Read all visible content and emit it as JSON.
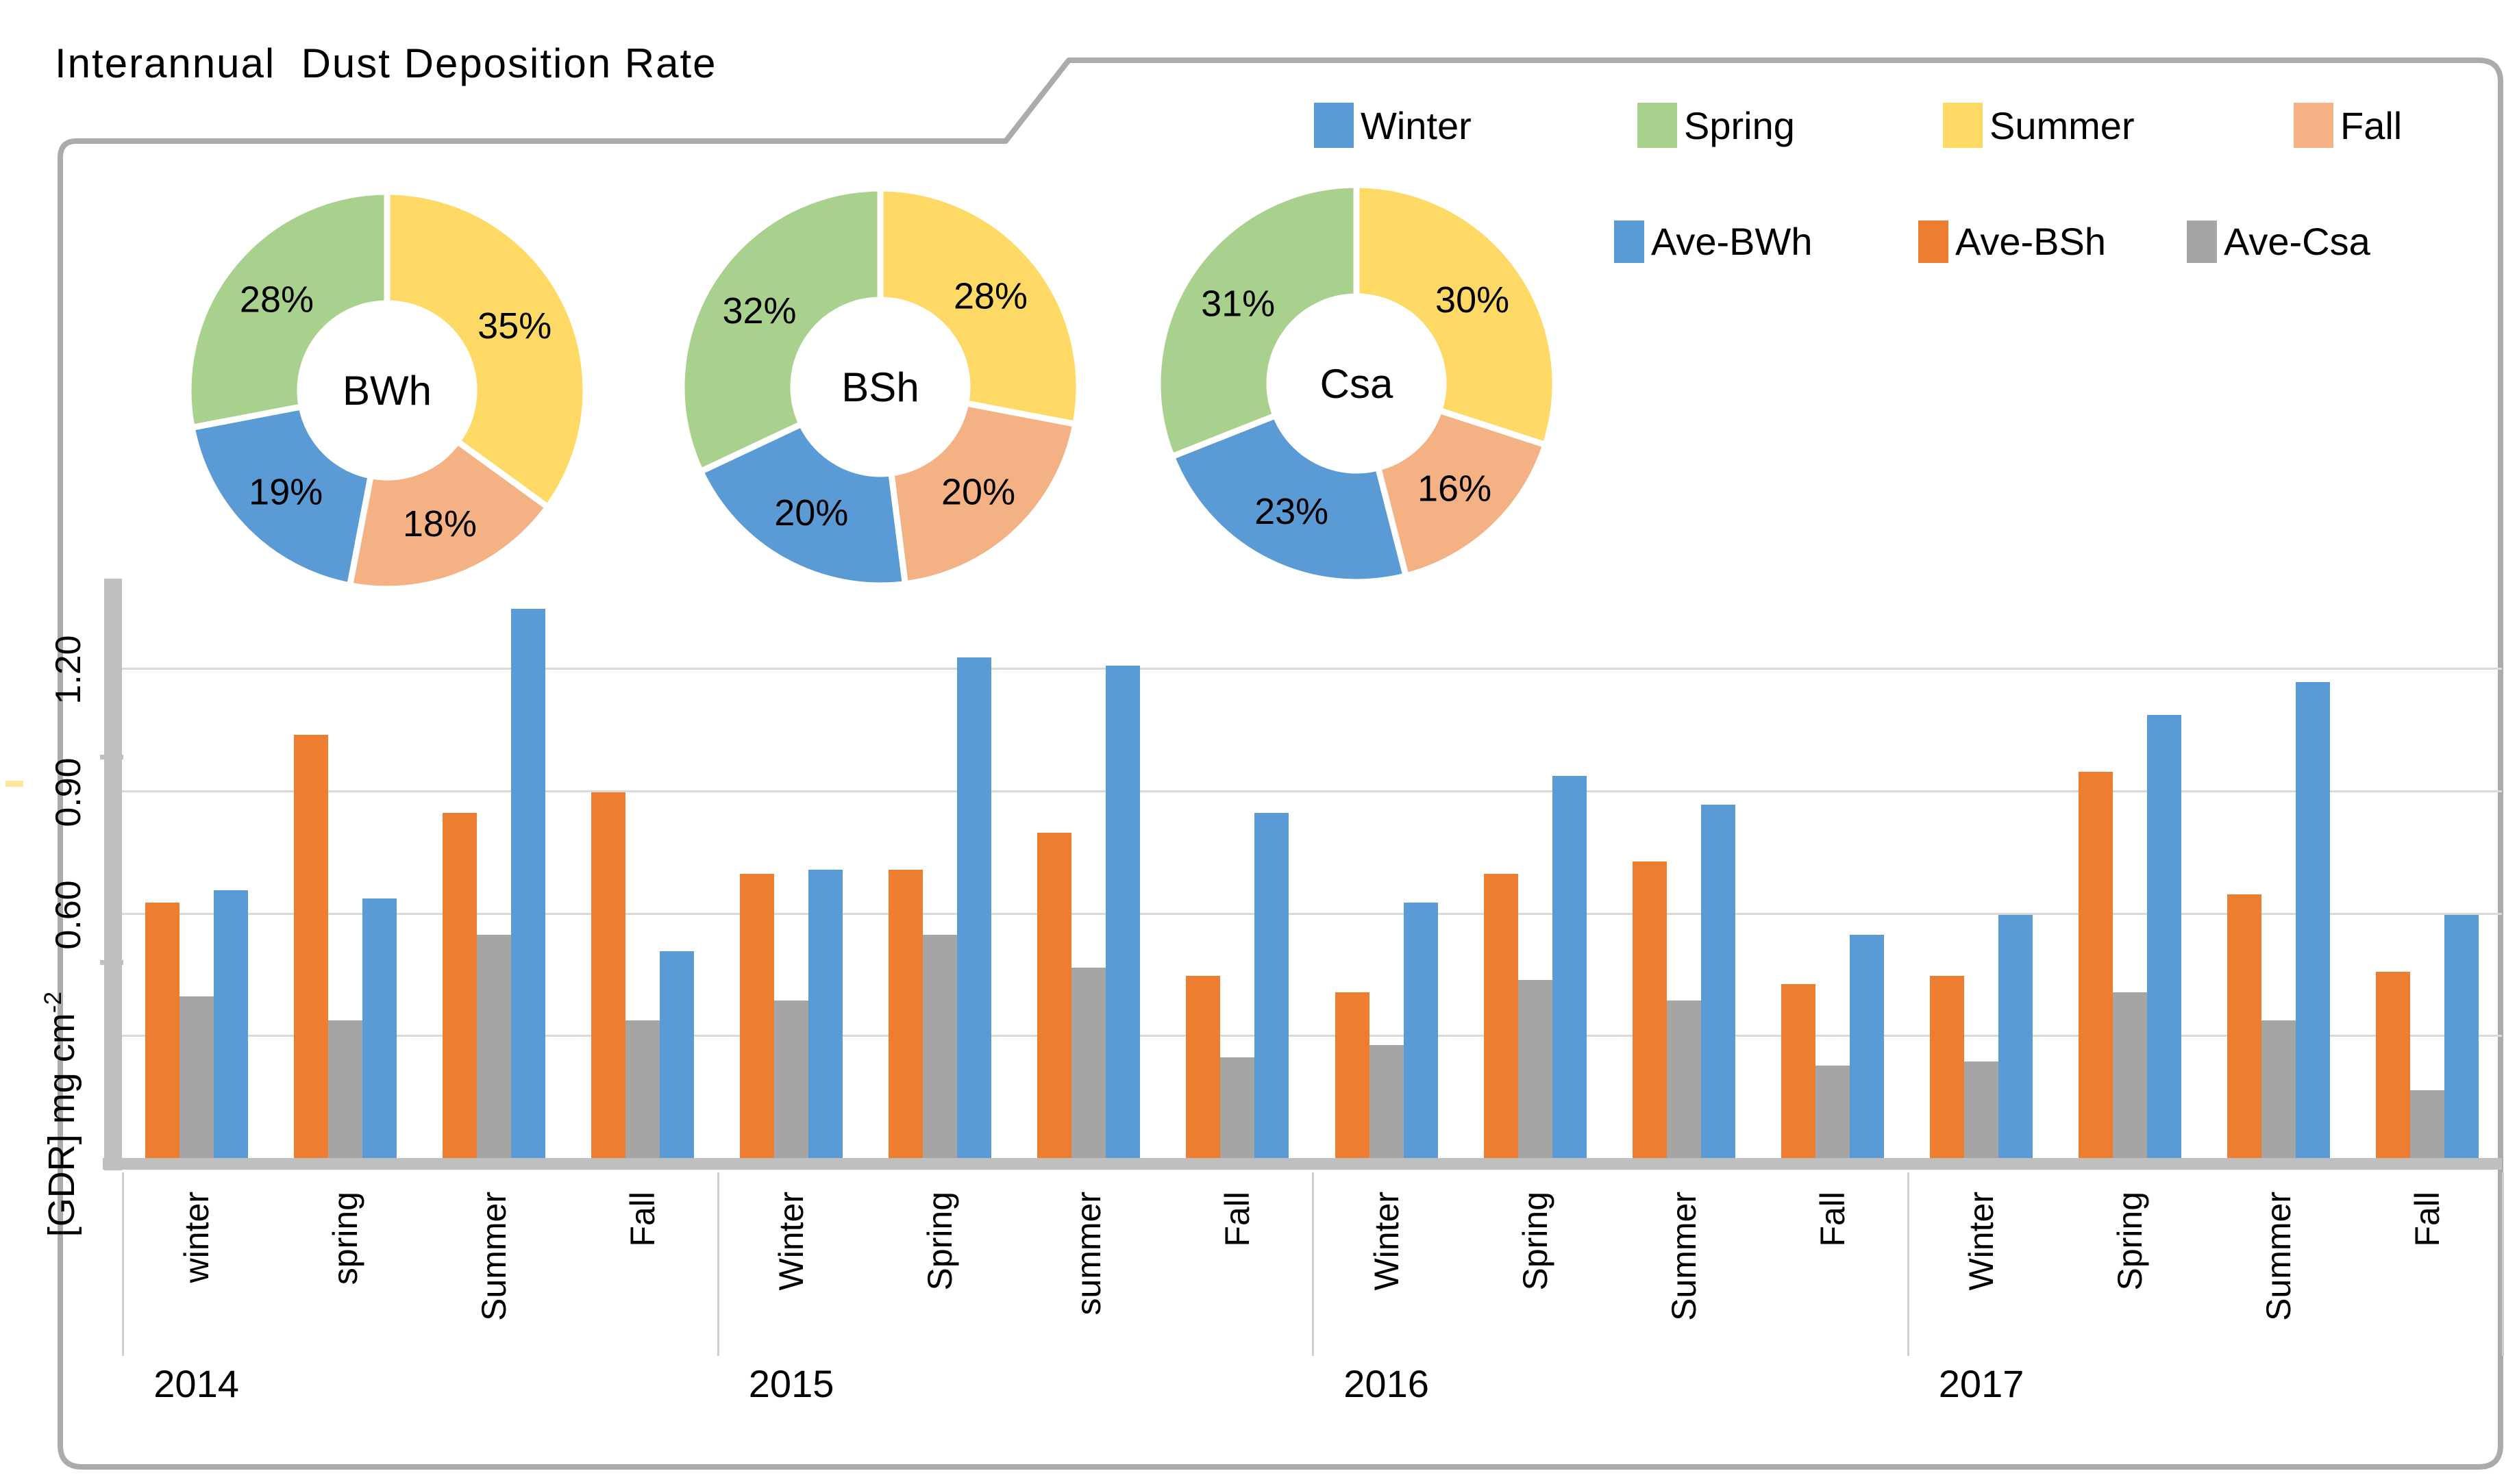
{
  "title": "Interannual  Dust Deposition Rate",
  "colors": {
    "Winter": "#5B9BD5",
    "Spring": "#A9D18E",
    "Summer": "#FFD966",
    "Fall": "#F4B183",
    "Ave-BWh": "#5B9BD5",
    "Ave-BSh": "#ED7D31",
    "Ave-Csa": "#A5A5A5",
    "gridline": "#D9D9D9",
    "axis": "#BFBFBF",
    "frame": "#ABABAB"
  },
  "legend": {
    "seasons": [
      "Winter",
      "Spring",
      "Summer",
      "Fall"
    ],
    "averages": [
      "Ave-BWh",
      "Ave-BSh",
      "Ave-Csa"
    ]
  },
  "chart_data": [
    {
      "type": "pie",
      "subtype": "donut",
      "center_label": "BWh",
      "start": "top",
      "direction": "clockwise",
      "slices": [
        {
          "season": "Summer",
          "value": 35,
          "label": "35%"
        },
        {
          "season": "Fall",
          "value": 18,
          "label": "18%"
        },
        {
          "season": "Winter",
          "value": 19,
          "label": "19%"
        },
        {
          "season": "Spring",
          "value": 28,
          "label": "28%"
        }
      ]
    },
    {
      "type": "pie",
      "subtype": "donut",
      "center_label": "BSh",
      "start": "top",
      "direction": "clockwise",
      "slices": [
        {
          "season": "Summer",
          "value": 28,
          "label": "28%"
        },
        {
          "season": "Fall",
          "value": 20,
          "label": "20%"
        },
        {
          "season": "Winter",
          "value": 20,
          "label": "20%"
        },
        {
          "season": "Spring",
          "value": 32,
          "label": "32%"
        }
      ]
    },
    {
      "type": "pie",
      "subtype": "donut",
      "center_label": "Csa",
      "start": "top",
      "direction": "clockwise",
      "slices": [
        {
          "season": "Summer",
          "value": 30,
          "label": "30%"
        },
        {
          "season": "Fall",
          "value": 16,
          "label": "16%"
        },
        {
          "season": "Winter",
          "value": 23,
          "label": "23%"
        },
        {
          "season": "Spring",
          "value": 31,
          "label": "31%"
        }
      ]
    },
    {
      "type": "bar",
      "ylabel": "[GDR] mg cm",
      "ylabel_sup": "-2",
      "ylim": [
        0,
        1.41
      ],
      "gridlines": [
        0.3,
        0.6,
        0.9,
        1.2
      ],
      "yticks": [
        {
          "value": 0.6,
          "label": "0.60"
        },
        {
          "value": 0.9,
          "label": "0.90"
        },
        {
          "value": 1.2,
          "label": "1.20"
        }
      ],
      "series": [
        {
          "name": "Ave-BSh",
          "color_key": "Ave-BSh"
        },
        {
          "name": "Ave-Csa",
          "color_key": "Ave-Csa"
        },
        {
          "name": "Ave-BWh",
          "color_key": "Ave-BWh"
        }
      ],
      "years": [
        {
          "year": "2014",
          "seasons": [
            {
              "label": "winter",
              "values": [
                0.63,
                0.4,
                0.66
              ]
            },
            {
              "label": "spring",
              "values": [
                1.04,
                0.34,
                0.64
              ]
            },
            {
              "label": "Summer",
              "values": [
                0.85,
                0.55,
                1.35
              ]
            },
            {
              "label": "Fall",
              "values": [
                0.9,
                0.34,
                0.51
              ]
            }
          ]
        },
        {
          "year": "2015",
          "seasons": [
            {
              "label": "Winter",
              "values": [
                0.7,
                0.39,
                0.71
              ]
            },
            {
              "label": "Spring",
              "values": [
                0.71,
                0.55,
                1.23
              ]
            },
            {
              "label": "summer",
              "values": [
                0.8,
                0.47,
                1.21
              ]
            },
            {
              "label": "Fall",
              "values": [
                0.45,
                0.25,
                0.85
              ]
            }
          ]
        },
        {
          "year": "2016",
          "seasons": [
            {
              "label": "Winter",
              "values": [
                0.41,
                0.28,
                0.63
              ]
            },
            {
              "label": "Spring",
              "values": [
                0.7,
                0.44,
                0.94
              ]
            },
            {
              "label": "Summer",
              "values": [
                0.73,
                0.39,
                0.87
              ]
            },
            {
              "label": "Fall",
              "values": [
                0.43,
                0.23,
                0.55
              ]
            }
          ]
        },
        {
          "year": "2017",
          "seasons": [
            {
              "label": "Winter",
              "values": [
                0.45,
                0.24,
                0.6
              ]
            },
            {
              "label": "Spring",
              "values": [
                0.95,
                0.41,
                1.09
              ]
            },
            {
              "label": "Summer",
              "values": [
                0.65,
                0.34,
                1.17
              ]
            },
            {
              "label": "Fall",
              "values": [
                0.46,
                0.17,
                0.6
              ]
            }
          ]
        }
      ]
    }
  ]
}
